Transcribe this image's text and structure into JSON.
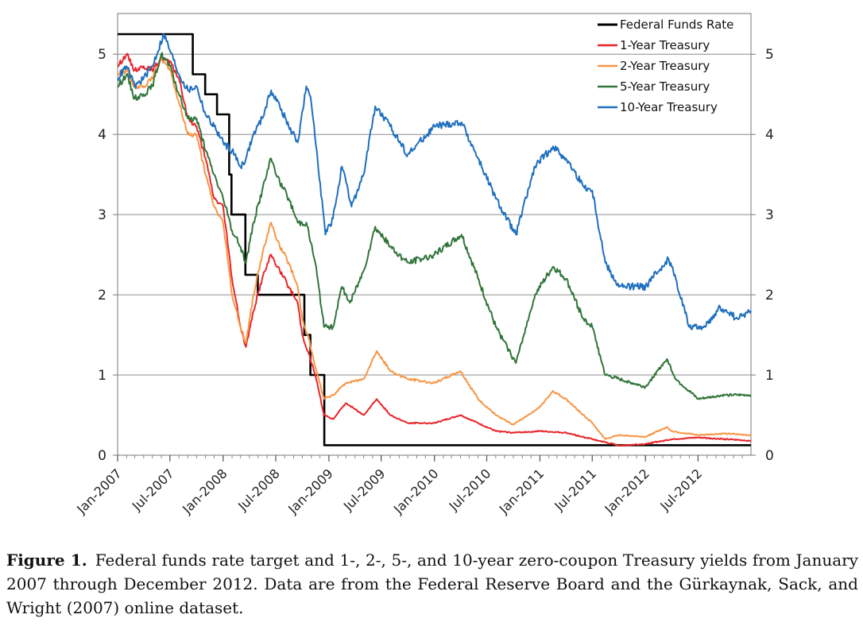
{
  "chart_data": {
    "type": "line",
    "x_axis_type": "date",
    "ylim": [
      0,
      5.5
    ],
    "yticks": [
      0,
      1,
      2,
      3,
      4,
      5
    ],
    "ytick_labels": [
      "0",
      "1",
      "2",
      "3",
      "4",
      "5"
    ],
    "right_ytick_labels": [
      "0",
      "1",
      "2",
      "3",
      "4",
      "5"
    ],
    "xlim": [
      "2007-01-01",
      "2012-12-31"
    ],
    "xticks": [
      "2007-01-01",
      "2007-07-01",
      "2008-01-01",
      "2008-07-01",
      "2009-01-01",
      "2009-07-01",
      "2010-01-01",
      "2010-07-01",
      "2011-01-01",
      "2011-07-01",
      "2012-01-01",
      "2012-07-01"
    ],
    "xtick_labels": [
      "Jan-2007",
      "Jul-2007",
      "Jan-2008",
      "Jul-2008",
      "Jan-2009",
      "Jul-2009",
      "Jan-2010",
      "Jul-2010",
      "Jan-2011",
      "Jul-2011",
      "Jan-2012",
      "Jul-2012"
    ],
    "grid": "horizontal",
    "legend_position": "top-right",
    "series": [
      {
        "name": "Federal Funds Rate",
        "color": "#000000",
        "step": true,
        "points": [
          [
            "2007-01-01",
            5.25
          ],
          [
            "2007-09-18",
            4.75
          ],
          [
            "2007-10-31",
            4.5
          ],
          [
            "2007-12-11",
            4.25
          ],
          [
            "2008-01-22",
            3.5
          ],
          [
            "2008-01-30",
            3.0
          ],
          [
            "2008-03-18",
            2.25
          ],
          [
            "2008-04-30",
            2.0
          ],
          [
            "2008-10-08",
            1.5
          ],
          [
            "2008-10-29",
            1.0
          ],
          [
            "2008-12-16",
            0.125
          ],
          [
            "2012-12-31",
            0.125
          ]
        ]
      },
      {
        "name": "1-Year Treasury",
        "color": "#e8262a",
        "points": [
          [
            "2007-01-01",
            4.85
          ],
          [
            "2007-02-01",
            5.0
          ],
          [
            "2007-03-01",
            4.8
          ],
          [
            "2007-04-01",
            4.85
          ],
          [
            "2007-05-01",
            4.8
          ],
          [
            "2007-06-01",
            4.95
          ],
          [
            "2007-07-01",
            4.9
          ],
          [
            "2007-08-01",
            4.7
          ],
          [
            "2007-09-01",
            4.2
          ],
          [
            "2007-10-01",
            4.1
          ],
          [
            "2007-11-01",
            3.7
          ],
          [
            "2007-12-01",
            3.2
          ],
          [
            "2008-01-01",
            3.1
          ],
          [
            "2008-02-01",
            2.2
          ],
          [
            "2008-03-01",
            1.6
          ],
          [
            "2008-03-20",
            1.35
          ],
          [
            "2008-04-15",
            1.8
          ],
          [
            "2008-05-15",
            2.2
          ],
          [
            "2008-06-15",
            2.5
          ],
          [
            "2008-07-15",
            2.3
          ],
          [
            "2008-08-15",
            2.1
          ],
          [
            "2008-09-15",
            1.9
          ],
          [
            "2008-10-01",
            1.5
          ],
          [
            "2008-10-20",
            1.3
          ],
          [
            "2008-11-15",
            1.0
          ],
          [
            "2008-12-15",
            0.5
          ],
          [
            "2009-01-15",
            0.45
          ],
          [
            "2009-03-01",
            0.65
          ],
          [
            "2009-05-01",
            0.5
          ],
          [
            "2009-06-15",
            0.7
          ],
          [
            "2009-08-01",
            0.5
          ],
          [
            "2009-10-01",
            0.4
          ],
          [
            "2010-01-01",
            0.4
          ],
          [
            "2010-04-01",
            0.5
          ],
          [
            "2010-06-01",
            0.4
          ],
          [
            "2010-08-01",
            0.3
          ],
          [
            "2010-10-01",
            0.28
          ],
          [
            "2011-01-01",
            0.3
          ],
          [
            "2011-04-01",
            0.28
          ],
          [
            "2011-07-01",
            0.2
          ],
          [
            "2011-10-01",
            0.12
          ],
          [
            "2012-01-01",
            0.14
          ],
          [
            "2012-04-01",
            0.2
          ],
          [
            "2012-07-01",
            0.22
          ],
          [
            "2012-10-01",
            0.2
          ],
          [
            "2012-12-31",
            0.18
          ]
        ]
      },
      {
        "name": "2-Year Treasury",
        "color": "#f79646",
        "points": [
          [
            "2007-01-01",
            4.75
          ],
          [
            "2007-02-01",
            4.8
          ],
          [
            "2007-03-01",
            4.6
          ],
          [
            "2007-04-01",
            4.6
          ],
          [
            "2007-05-01",
            4.7
          ],
          [
            "2007-06-01",
            4.95
          ],
          [
            "2007-07-01",
            4.8
          ],
          [
            "2007-08-01",
            4.4
          ],
          [
            "2007-09-01",
            4.0
          ],
          [
            "2007-10-01",
            4.0
          ],
          [
            "2007-11-01",
            3.5
          ],
          [
            "2007-12-01",
            3.1
          ],
          [
            "2008-01-01",
            2.9
          ],
          [
            "2008-02-01",
            2.0
          ],
          [
            "2008-03-01",
            1.6
          ],
          [
            "2008-03-20",
            1.4
          ],
          [
            "2008-04-15",
            2.0
          ],
          [
            "2008-05-15",
            2.5
          ],
          [
            "2008-06-15",
            2.9
          ],
          [
            "2008-07-15",
            2.6
          ],
          [
            "2008-08-15",
            2.4
          ],
          [
            "2008-09-15",
            2.1
          ],
          [
            "2008-10-01",
            1.7
          ],
          [
            "2008-10-20",
            1.5
          ],
          [
            "2008-11-15",
            1.1
          ],
          [
            "2008-12-15",
            0.7
          ],
          [
            "2009-01-15",
            0.75
          ],
          [
            "2009-03-01",
            0.9
          ],
          [
            "2009-05-01",
            0.95
          ],
          [
            "2009-06-15",
            1.3
          ],
          [
            "2009-08-01",
            1.05
          ],
          [
            "2009-10-01",
            0.95
          ],
          [
            "2010-01-01",
            0.9
          ],
          [
            "2010-04-01",
            1.05
          ],
          [
            "2010-06-01",
            0.7
          ],
          [
            "2010-08-01",
            0.5
          ],
          [
            "2010-10-01",
            0.38
          ],
          [
            "2011-01-01",
            0.6
          ],
          [
            "2011-02-15",
            0.8
          ],
          [
            "2011-04-01",
            0.7
          ],
          [
            "2011-07-01",
            0.4
          ],
          [
            "2011-08-15",
            0.2
          ],
          [
            "2011-10-01",
            0.25
          ],
          [
            "2012-01-01",
            0.23
          ],
          [
            "2012-03-15",
            0.35
          ],
          [
            "2012-04-01",
            0.3
          ],
          [
            "2012-07-01",
            0.25
          ],
          [
            "2012-10-01",
            0.27
          ],
          [
            "2012-12-31",
            0.25
          ]
        ]
      },
      {
        "name": "5-Year Treasury",
        "color": "#31753a",
        "points": [
          [
            "2007-01-01",
            4.6
          ],
          [
            "2007-02-01",
            4.75
          ],
          [
            "2007-03-01",
            4.45
          ],
          [
            "2007-04-01",
            4.5
          ],
          [
            "2007-05-01",
            4.6
          ],
          [
            "2007-06-01",
            5.0
          ],
          [
            "2007-07-01",
            4.85
          ],
          [
            "2007-08-01",
            4.5
          ],
          [
            "2007-09-01",
            4.2
          ],
          [
            "2007-10-01",
            4.2
          ],
          [
            "2007-11-01",
            3.8
          ],
          [
            "2007-12-01",
            3.5
          ],
          [
            "2008-01-01",
            3.2
          ],
          [
            "2008-02-01",
            2.8
          ],
          [
            "2008-03-01",
            2.6
          ],
          [
            "2008-03-20",
            2.4
          ],
          [
            "2008-04-15",
            2.9
          ],
          [
            "2008-05-15",
            3.3
          ],
          [
            "2008-06-15",
            3.7
          ],
          [
            "2008-07-15",
            3.4
          ],
          [
            "2008-08-15",
            3.2
          ],
          [
            "2008-09-15",
            2.9
          ],
          [
            "2008-10-15",
            2.9
          ],
          [
            "2008-11-15",
            2.4
          ],
          [
            "2008-12-15",
            1.6
          ],
          [
            "2009-01-15",
            1.6
          ],
          [
            "2009-02-15",
            2.1
          ],
          [
            "2009-03-15",
            1.9
          ],
          [
            "2009-05-01",
            2.3
          ],
          [
            "2009-06-10",
            2.85
          ],
          [
            "2009-08-01",
            2.6
          ],
          [
            "2009-10-01",
            2.4
          ],
          [
            "2010-01-01",
            2.5
          ],
          [
            "2010-04-05",
            2.75
          ],
          [
            "2010-06-01",
            2.2
          ],
          [
            "2010-08-01",
            1.6
          ],
          [
            "2010-10-10",
            1.15
          ],
          [
            "2010-12-15",
            2.0
          ],
          [
            "2011-02-15",
            2.35
          ],
          [
            "2011-04-01",
            2.2
          ],
          [
            "2011-06-01",
            1.7
          ],
          [
            "2011-07-01",
            1.6
          ],
          [
            "2011-08-15",
            1.0
          ],
          [
            "2011-10-01",
            0.95
          ],
          [
            "2012-01-01",
            0.85
          ],
          [
            "2012-03-15",
            1.2
          ],
          [
            "2012-04-15",
            0.95
          ],
          [
            "2012-07-01",
            0.7
          ],
          [
            "2012-10-01",
            0.75
          ],
          [
            "2012-12-31",
            0.75
          ]
        ]
      },
      {
        "name": "10-Year Treasury",
        "color": "#1f6fbf",
        "points": [
          [
            "2007-01-01",
            4.7
          ],
          [
            "2007-02-01",
            4.85
          ],
          [
            "2007-03-01",
            4.6
          ],
          [
            "2007-04-01",
            4.7
          ],
          [
            "2007-05-01",
            4.85
          ],
          [
            "2007-06-10",
            5.25
          ],
          [
            "2007-07-01",
            5.05
          ],
          [
            "2007-08-01",
            4.75
          ],
          [
            "2007-09-01",
            4.55
          ],
          [
            "2007-10-01",
            4.6
          ],
          [
            "2007-11-01",
            4.25
          ],
          [
            "2007-12-01",
            4.1
          ],
          [
            "2008-01-01",
            3.9
          ],
          [
            "2008-02-01",
            3.8
          ],
          [
            "2008-03-01",
            3.6
          ],
          [
            "2008-03-20",
            3.7
          ],
          [
            "2008-04-15",
            4.0
          ],
          [
            "2008-05-15",
            4.2
          ],
          [
            "2008-06-15",
            4.55
          ],
          [
            "2008-07-15",
            4.35
          ],
          [
            "2008-08-15",
            4.1
          ],
          [
            "2008-09-15",
            3.9
          ],
          [
            "2008-10-15",
            4.6
          ],
          [
            "2008-11-01",
            4.4
          ],
          [
            "2008-11-20",
            3.8
          ],
          [
            "2008-12-20",
            2.75
          ],
          [
            "2009-01-15",
            2.95
          ],
          [
            "2009-02-15",
            3.6
          ],
          [
            "2009-03-20",
            3.1
          ],
          [
            "2009-05-01",
            3.5
          ],
          [
            "2009-06-10",
            4.35
          ],
          [
            "2009-08-01",
            4.1
          ],
          [
            "2009-10-01",
            3.75
          ],
          [
            "2010-01-01",
            4.1
          ],
          [
            "2010-04-05",
            4.15
          ],
          [
            "2010-06-01",
            3.7
          ],
          [
            "2010-08-01",
            3.2
          ],
          [
            "2010-10-10",
            2.75
          ],
          [
            "2010-12-15",
            3.6
          ],
          [
            "2011-02-15",
            3.85
          ],
          [
            "2011-04-01",
            3.7
          ],
          [
            "2011-06-01",
            3.35
          ],
          [
            "2011-07-01",
            3.3
          ],
          [
            "2011-08-15",
            2.4
          ],
          [
            "2011-10-01",
            2.1
          ],
          [
            "2012-01-01",
            2.1
          ],
          [
            "2012-03-20",
            2.45
          ],
          [
            "2012-04-15",
            2.2
          ],
          [
            "2012-06-01",
            1.6
          ],
          [
            "2012-07-25",
            1.6
          ],
          [
            "2012-09-15",
            1.85
          ],
          [
            "2012-11-15",
            1.7
          ],
          [
            "2012-12-31",
            1.8
          ]
        ]
      }
    ]
  },
  "caption": {
    "label": "Figure 1.",
    "text": "Federal funds rate target and 1-, 2-, 5-, and 10-year zero-coupon Treasury yields from January 2007 through December 2012. Data are from the Federal Reserve Board and the Gürkaynak, Sack, and Wright (2007) online dataset."
  }
}
